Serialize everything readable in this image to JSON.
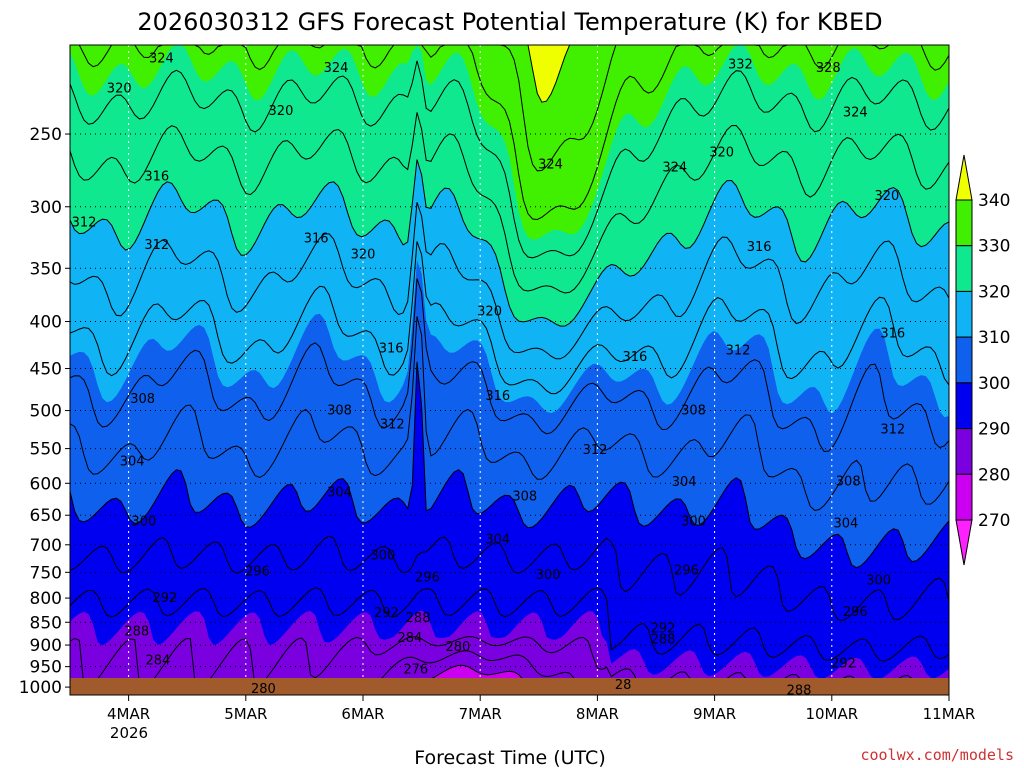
{
  "chart_data": {
    "type": "contour",
    "title": "2026030312 GFS Forecast Potential Temperature (K) for KBED",
    "xlabel": "Forecast Time (UTC)",
    "ylabel": "",
    "credit": "coolwx.com/models",
    "y_axis": {
      "scale": "log-pressure",
      "range": [
        1020,
        200
      ],
      "ticks": [
        250,
        300,
        350,
        400,
        450,
        500,
        550,
        600,
        650,
        700,
        750,
        800,
        850,
        900,
        950,
        1000
      ],
      "tick_labels": [
        "250",
        "300",
        "350",
        "400",
        "450",
        "500",
        "550",
        "600",
        "650",
        "700",
        "750",
        "800",
        "850",
        "900",
        "950",
        "1000"
      ]
    },
    "x_axis": {
      "range_days": [
        3.5,
        11.0
      ],
      "ticks": [
        4,
        5,
        6,
        7,
        8,
        9,
        10,
        11
      ],
      "tick_labels": [
        "4MAR",
        "5MAR",
        "6MAR",
        "7MAR",
        "8MAR",
        "9MAR",
        "10MAR",
        "11MAR"
      ],
      "year_label": "2026",
      "grid": "dotted"
    },
    "colorbar": {
      "levels": [
        270,
        280,
        290,
        300,
        310,
        320,
        330,
        340
      ],
      "labels": [
        "270",
        "280",
        "290",
        "300",
        "310",
        "320",
        "330",
        "340"
      ],
      "colors": [
        "#ff20ff",
        "#cc00f0",
        "#7a00e0",
        "#0000f0",
        "#1060ee",
        "#10b4f4",
        "#10e890",
        "#40f000",
        "#f0ff00"
      ]
    },
    "contour_interval": 4,
    "contour_labels": [
      {
        "text": "324",
        "day": 4.28,
        "p": 207
      },
      {
        "text": "320",
        "day": 3.92,
        "p": 223
      },
      {
        "text": "324",
        "day": 5.77,
        "p": 212
      },
      {
        "text": "320",
        "day": 5.3,
        "p": 236
      },
      {
        "text": "316",
        "day": 4.24,
        "p": 278
      },
      {
        "text": "312",
        "day": 3.62,
        "p": 312
      },
      {
        "text": "312",
        "day": 4.24,
        "p": 330
      },
      {
        "text": "316",
        "day": 5.6,
        "p": 325
      },
      {
        "text": "320",
        "day": 6.0,
        "p": 338
      },
      {
        "text": "324",
        "day": 7.6,
        "p": 270
      },
      {
        "text": "324",
        "day": 8.66,
        "p": 272
      },
      {
        "text": "320",
        "day": 9.06,
        "p": 262
      },
      {
        "text": "332",
        "day": 9.22,
        "p": 210
      },
      {
        "text": "328",
        "day": 9.97,
        "p": 212
      },
      {
        "text": "324",
        "day": 10.2,
        "p": 237
      },
      {
        "text": "320",
        "day": 10.47,
        "p": 292
      },
      {
        "text": "316",
        "day": 9.38,
        "p": 332
      },
      {
        "text": "320",
        "day": 7.08,
        "p": 390
      },
      {
        "text": "316",
        "day": 6.24,
        "p": 428
      },
      {
        "text": "316",
        "day": 8.32,
        "p": 437
      },
      {
        "text": "312",
        "day": 9.2,
        "p": 430
      },
      {
        "text": "316",
        "day": 10.52,
        "p": 412
      },
      {
        "text": "308",
        "day": 4.12,
        "p": 486
      },
      {
        "text": "308",
        "day": 5.8,
        "p": 500
      },
      {
        "text": "312",
        "day": 6.25,
        "p": 518
      },
      {
        "text": "316",
        "day": 7.15,
        "p": 482
      },
      {
        "text": "308",
        "day": 8.82,
        "p": 500
      },
      {
        "text": "312",
        "day": 10.52,
        "p": 524
      },
      {
        "text": "304",
        "day": 4.03,
        "p": 568
      },
      {
        "text": "312",
        "day": 7.98,
        "p": 552
      },
      {
        "text": "304",
        "day": 5.8,
        "p": 614
      },
      {
        "text": "308",
        "day": 7.38,
        "p": 620
      },
      {
        "text": "304",
        "day": 8.74,
        "p": 598
      },
      {
        "text": "308",
        "day": 10.14,
        "p": 597
      },
      {
        "text": "300",
        "day": 4.13,
        "p": 660
      },
      {
        "text": "304",
        "day": 7.15,
        "p": 691
      },
      {
        "text": "300",
        "day": 8.82,
        "p": 660
      },
      {
        "text": "304",
        "day": 10.12,
        "p": 664
      },
      {
        "text": "300",
        "day": 6.17,
        "p": 719
      },
      {
        "text": "296",
        "day": 6.55,
        "p": 760
      },
      {
        "text": "300",
        "day": 7.58,
        "p": 755
      },
      {
        "text": "296",
        "day": 5.1,
        "p": 748
      },
      {
        "text": "296",
        "day": 8.76,
        "p": 747
      },
      {
        "text": "300",
        "day": 10.4,
        "p": 766
      },
      {
        "text": "292",
        "day": 4.31,
        "p": 800
      },
      {
        "text": "292",
        "day": 6.2,
        "p": 830
      },
      {
        "text": "288",
        "day": 6.47,
        "p": 841
      },
      {
        "text": "296",
        "day": 10.2,
        "p": 828
      },
      {
        "text": "288",
        "day": 4.07,
        "p": 870
      },
      {
        "text": "292",
        "day": 8.56,
        "p": 863
      },
      {
        "text": "288",
        "day": 8.56,
        "p": 888
      },
      {
        "text": "284",
        "day": 6.4,
        "p": 884
      },
      {
        "text": "280",
        "day": 6.81,
        "p": 904
      },
      {
        "text": "284",
        "day": 4.25,
        "p": 936
      },
      {
        "text": "292",
        "day": 10.1,
        "p": 942
      },
      {
        "text": "276",
        "day": 6.45,
        "p": 957
      },
      {
        "text": "280",
        "day": 5.15,
        "p": 1005
      },
      {
        "text": "28",
        "day": 8.22,
        "p": 995
      },
      {
        "text": "288",
        "day": 9.72,
        "p": 1008
      }
    ],
    "ground_color": "#a05a2c"
  }
}
